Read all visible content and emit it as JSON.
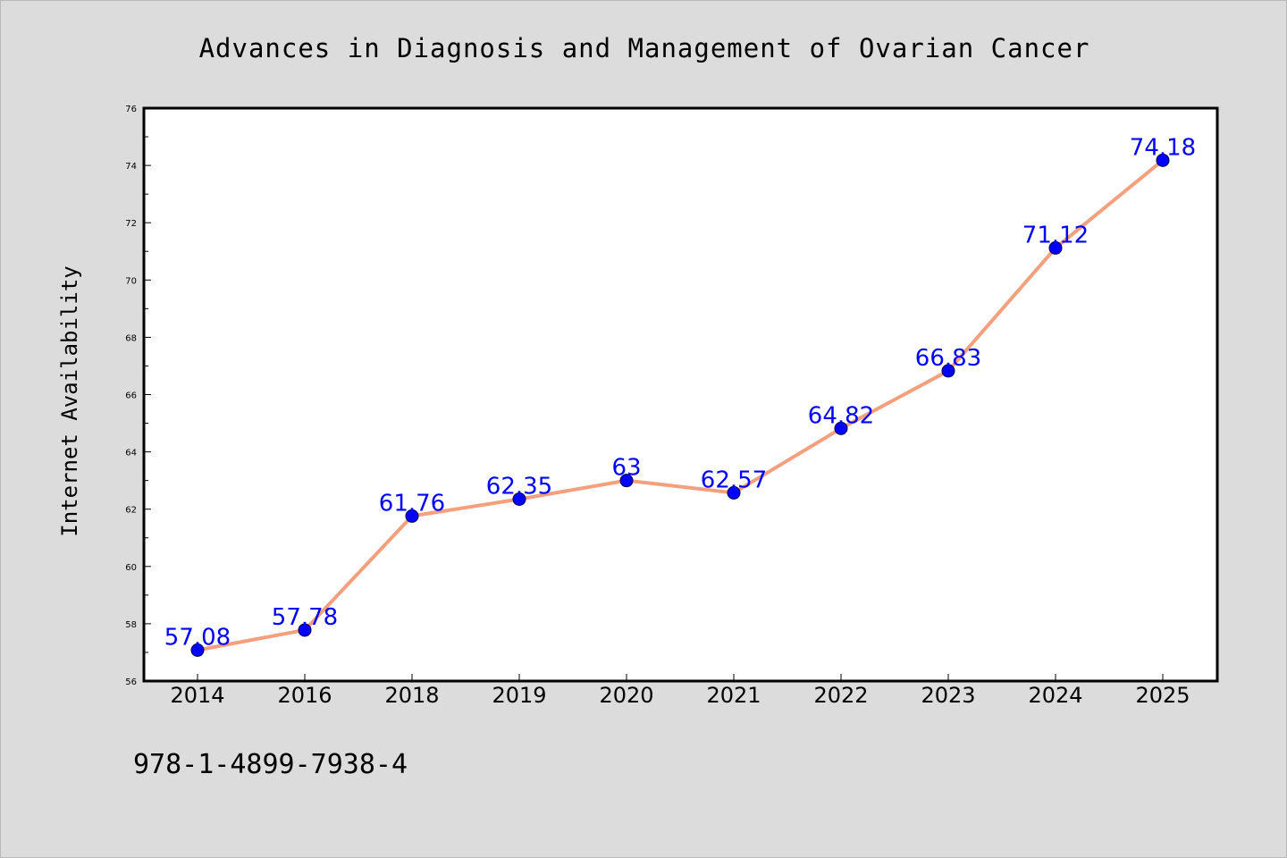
{
  "chart_data": {
    "type": "line",
    "title": "Advances in Diagnosis and Management of Ovarian Cancer",
    "xlabel": "",
    "ylabel": "Internet Availability",
    "categories": [
      "2014",
      "2016",
      "2018",
      "2019",
      "2020",
      "2021",
      "2022",
      "2023",
      "2024",
      "2025"
    ],
    "series": [
      {
        "values": [
          57.08,
          57.78,
          61.76,
          62.35,
          63,
          62.57,
          64.82,
          66.83,
          71.12,
          74.18
        ],
        "data_labels": [
          "57.08",
          "57.78",
          "61.76",
          "62.35",
          "63",
          "62.57",
          "64.82",
          "66.83",
          "71.12",
          "74.18"
        ],
        "line_color": "#f4a07c",
        "marker_color": "#0000ff"
      }
    ],
    "ylim": [
      56,
      76
    ],
    "yticks": [
      56,
      58,
      60,
      62,
      64,
      66,
      68,
      70,
      72,
      74,
      76
    ],
    "grid": false,
    "legend": "none",
    "data_label_color": "#0000ff"
  },
  "annotation": {
    "isbn": "978-1-4899-7938-4"
  },
  "colors": {
    "figure_background": "#dcdcdc",
    "plot_background": "#ffffff",
    "axes_edge": "#000000"
  }
}
